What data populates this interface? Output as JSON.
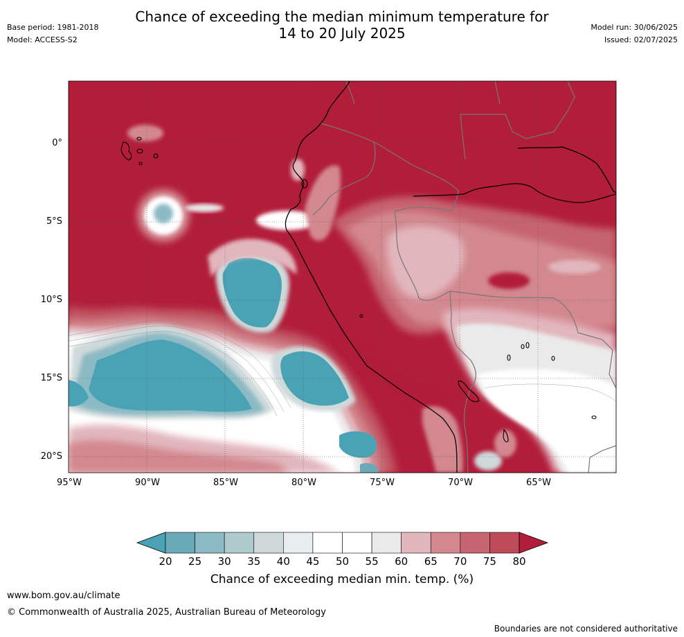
{
  "header": {
    "title_line1": "Chance of exceeding the median minimum temperature for",
    "title_line2": "14 to 20 July 2025",
    "base_period": "Base period: 1981-2018",
    "model": "Model: ACCESS-S2",
    "model_run": "Model run: 30/06/2025",
    "issued": "Issued: 02/07/2025"
  },
  "map": {
    "lat_labels": [
      "0°",
      "5°S",
      "10°S",
      "15°S",
      "20°S"
    ],
    "lat_values": [
      0,
      -5,
      -10,
      -15,
      -20
    ],
    "lon_labels": [
      "95°W",
      "90°W",
      "85°W",
      "80°W",
      "75°W",
      "70°W",
      "65°W"
    ],
    "lon_values": [
      -95,
      -90,
      -85,
      -80,
      -75,
      -70,
      -65
    ],
    "extent": {
      "lon_min": -95,
      "lon_max": -60,
      "lat_min": -21,
      "lat_max": 4
    }
  },
  "legend": {
    "title": "Chance of exceeding median min. temp. (%)",
    "ticks": [
      "20",
      "25",
      "30",
      "35",
      "40",
      "45",
      "50",
      "55",
      "60",
      "65",
      "70",
      "75",
      "80"
    ],
    "colors": [
      "#4aa3b4",
      "#6aa9b7",
      "#8cbac4",
      "#afcacd",
      "#cfd9da",
      "#e8eef0",
      "#ffffff",
      "#ffffff",
      "#ebeaeb",
      "#e2b6bd",
      "#d3888f",
      "#c66470",
      "#bd4b5a",
      "#b21d3a"
    ]
  },
  "footer": {
    "url": "www.bom.gov.au/climate",
    "copyright": "© Commonwealth of Australia 2025, Australian Bureau of Meteorology",
    "disclaimer": "Boundaries are not considered authoritative"
  }
}
